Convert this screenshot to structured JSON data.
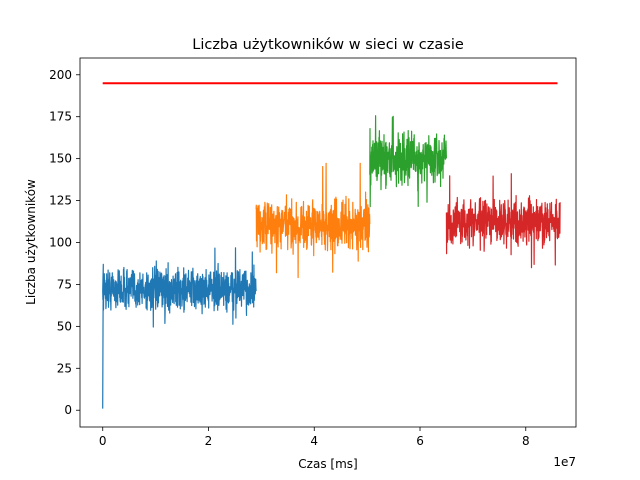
{
  "chart_data": {
    "type": "line",
    "title": "Liczba użytkowników w sieci w czasie",
    "xlabel": "Czas [ms]",
    "ylabel": "Liczba użytkowników",
    "x_scale_label": "1e7",
    "xlim": [
      -0.43,
      8.95
    ],
    "ylim": [
      -10,
      210
    ],
    "x_ticks": [
      0,
      2,
      4,
      6,
      8
    ],
    "y_ticks": [
      0,
      25,
      50,
      75,
      100,
      125,
      150,
      175,
      200
    ],
    "grid": false,
    "legend": "none",
    "series": [
      {
        "color": "#1f77b4",
        "x_start": 0.0,
        "x_end": 2.9,
        "center": 72,
        "amplitude": 11,
        "max_value": 98,
        "min_value": 48,
        "start_value": 1,
        "pattern": "noisy band"
      },
      {
        "color": "#ff7f0e",
        "x_start": 2.9,
        "x_end": 5.05,
        "center": 110,
        "amplitude": 13,
        "max_value": 148,
        "min_value": 79,
        "pattern": "noisy band"
      },
      {
        "color": "#2ca02c",
        "x_start": 5.05,
        "x_end": 6.5,
        "center": 150,
        "amplitude": 13,
        "max_value": 178,
        "min_value": 120,
        "pattern": "noisy band"
      },
      {
        "color": "#d62728",
        "x_start": 6.5,
        "x_end": 8.65,
        "center": 112,
        "amplitude": 12,
        "max_value": 143,
        "min_value": 84,
        "pattern": "noisy band"
      },
      {
        "color": "#ff0000",
        "x_start": 0.0,
        "x_end": 8.6,
        "value": 195,
        "pattern": "constant"
      }
    ]
  }
}
